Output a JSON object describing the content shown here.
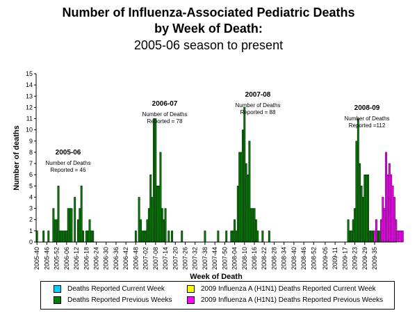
{
  "chart_data": {
    "type": "bar",
    "title": [
      "Number of Influenza-Associated Pediatric Deaths",
      "by Week of Death:",
      "2005-06 season to present"
    ],
    "xlabel": "Week of Death",
    "ylabel": "Number of deaths",
    "ylim": [
      0,
      15
    ],
    "yticks": [
      0,
      1,
      2,
      3,
      4,
      5,
      6,
      7,
      8,
      9,
      10,
      11,
      12,
      13,
      14,
      15
    ],
    "x_start_week": "2005-40",
    "x_end_week": "2009-35",
    "xtick_labels": [
      "2005-40",
      "2005-46",
      "2005-52",
      "2006-06",
      "2006-12",
      "2006-18",
      "2006-24",
      "2006-30",
      "2006-36",
      "2006-42",
      "2006-48",
      "2007-02",
      "2007-08",
      "2007-14",
      "2007-20",
      "2007-26",
      "2007-32",
      "2007-38",
      "2007-44",
      "2007-50",
      "2008-04",
      "2008-10",
      "2008-16",
      "2008-22",
      "2008-28",
      "2008-34",
      "2008-40",
      "2008-46",
      "2008-52",
      "2009-05",
      "2009-11",
      "2009-17",
      "2009-23",
      "2009-29",
      "2009-35"
    ],
    "series": [
      {
        "name": "Deaths Reported Current Week",
        "color": "#00ccff",
        "points": []
      },
      {
        "name": "Deaths Reported Previous Weeks",
        "color": "#007f00",
        "points": [
          [
            0,
            1
          ],
          [
            4,
            1
          ],
          [
            7,
            1
          ],
          [
            10,
            3
          ],
          [
            11,
            2
          ],
          [
            12,
            2
          ],
          [
            13,
            5
          ],
          [
            14,
            1
          ],
          [
            15,
            1
          ],
          [
            16,
            1
          ],
          [
            17,
            1
          ],
          [
            18,
            1
          ],
          [
            19,
            3
          ],
          [
            20,
            3
          ],
          [
            21,
            3
          ],
          [
            23,
            4
          ],
          [
            25,
            2
          ],
          [
            26,
            3
          ],
          [
            27,
            5
          ],
          [
            28,
            1
          ],
          [
            30,
            1
          ],
          [
            31,
            1
          ],
          [
            32,
            2
          ],
          [
            33,
            1
          ],
          [
            34,
            1
          ],
          [
            60,
            1
          ],
          [
            62,
            4
          ],
          [
            63,
            2
          ],
          [
            64,
            1
          ],
          [
            65,
            1
          ],
          [
            66,
            1
          ],
          [
            67,
            2
          ],
          [
            68,
            3
          ],
          [
            69,
            6
          ],
          [
            70,
            4
          ],
          [
            71,
            11
          ],
          [
            72,
            11
          ],
          [
            73,
            5
          ],
          [
            74,
            5
          ],
          [
            75,
            8
          ],
          [
            76,
            3
          ],
          [
            77,
            2
          ],
          [
            78,
            3
          ],
          [
            80,
            1
          ],
          [
            82,
            1
          ],
          [
            88,
            1
          ],
          [
            102,
            1
          ],
          [
            110,
            1
          ],
          [
            115,
            1
          ],
          [
            118,
            1
          ],
          [
            119,
            1
          ],
          [
            120,
            2
          ],
          [
            121,
            1
          ],
          [
            122,
            5
          ],
          [
            123,
            8
          ],
          [
            124,
            8
          ],
          [
            125,
            10
          ],
          [
            126,
            12
          ],
          [
            127,
            7
          ],
          [
            128,
            6
          ],
          [
            129,
            9
          ],
          [
            130,
            3
          ],
          [
            131,
            3
          ],
          [
            132,
            3
          ],
          [
            133,
            2
          ],
          [
            134,
            1
          ],
          [
            137,
            1
          ],
          [
            141,
            1
          ],
          [
            189,
            2
          ],
          [
            190,
            1
          ],
          [
            191,
            1
          ],
          [
            192,
            2
          ],
          [
            193,
            3
          ],
          [
            194,
            9
          ],
          [
            195,
            11
          ],
          [
            196,
            7
          ],
          [
            197,
            5
          ],
          [
            198,
            4
          ],
          [
            199,
            6
          ],
          [
            200,
            6
          ],
          [
            201,
            6
          ],
          [
            202,
            1
          ],
          [
            203,
            1
          ],
          [
            204,
            1
          ],
          [
            207,
            1
          ],
          [
            208,
            1
          ],
          [
            213,
            1
          ]
        ]
      },
      {
        "name": "2009 Influenza A (H1N1) Deaths Reported Current Week",
        "color": "#ffff00",
        "points": [
          [
            216,
            1
          ]
        ]
      },
      {
        "name": "2009 Influenza A (H1N1) Deaths Reported Previous Weeks",
        "color": "#ff00ff",
        "points": [
          [
            205,
            1
          ],
          [
            206,
            2
          ],
          [
            209,
            2
          ],
          [
            210,
            4
          ],
          [
            211,
            3
          ],
          [
            212,
            8
          ],
          [
            213,
            6
          ],
          [
            214,
            7
          ],
          [
            215,
            6
          ],
          [
            216,
            5
          ],
          [
            217,
            4
          ],
          [
            218,
            2
          ],
          [
            219,
            1
          ],
          [
            220,
            1
          ],
          [
            221,
            1
          ],
          [
            222,
            1
          ]
        ]
      }
    ],
    "annotations": [
      {
        "season": "2005-06",
        "text": [
          "Number of Deaths",
          "Reported = 46"
        ]
      },
      {
        "season": "2006-07",
        "text": [
          "Number of Deaths",
          "Reported = 78"
        ]
      },
      {
        "season": "2007-08",
        "text": [
          "Number of Deaths",
          "Reported = 88"
        ]
      },
      {
        "season": "2008-09",
        "text": [
          "Number of Deaths",
          "Reported =112"
        ]
      }
    ],
    "legend_position": "bottom",
    "grid": false
  },
  "legend": {
    "items": [
      {
        "label": "Deaths Reported Current Week",
        "color": "#00ccff"
      },
      {
        "label": "2009 Influenza A (H1N1) Deaths Reported Current Week",
        "color": "#ffff00"
      },
      {
        "label": "Deaths Reported Previous Weeks",
        "color": "#007f00"
      },
      {
        "label": "2009 Influenza A (H1N1) Deaths Reported Previous Weeks",
        "color": "#ff00ff"
      }
    ]
  }
}
